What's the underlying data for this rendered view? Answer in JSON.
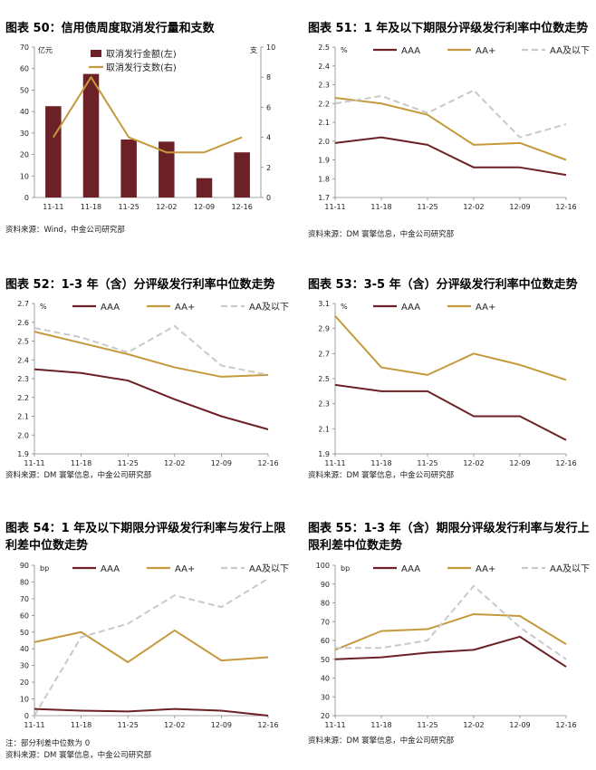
{
  "colors": {
    "aaa": "#6b2125",
    "aa_plus": "#c49a3c",
    "aa_below": "#c9c9c9",
    "bar": "#6b2125"
  },
  "charts": [
    {
      "title": "图表 50：信用债周度取消发行量和支数",
      "source": "资料来源：Wind，中金公司研究部",
      "note": "",
      "chart_data": {
        "type": "bar+line",
        "categories": [
          "11-11",
          "11-18",
          "11-25",
          "12-02",
          "12-09",
          "12-16"
        ],
        "y_unit_left": "亿元",
        "y_unit_right": "支",
        "ylim_left": [
          0,
          70
        ],
        "yticks_left": [
          0,
          10,
          20,
          30,
          40,
          50,
          60,
          70
        ],
        "ylim_right": [
          0,
          10
        ],
        "yticks_right": [
          0,
          2,
          4,
          6,
          8,
          10
        ],
        "legend": [
          "取消发行金额(左)",
          "取消发行支数(右)"
        ],
        "bars": {
          "name": "取消发行金额(左)",
          "values": [
            42.5,
            57.5,
            27,
            26,
            9,
            21
          ]
        },
        "line": {
          "name": "取消发行支数(右)",
          "values": [
            4,
            8,
            4,
            3,
            3,
            4
          ]
        }
      }
    },
    {
      "title": "图表 51：1 年及以下期限分评级发行利率中位数走势",
      "source": "资料来源：DM 寰擎信息，中金公司研究部",
      "note": "",
      "chart_data": {
        "type": "line",
        "categories": [
          "11-11",
          "11-18",
          "11-25",
          "12-02",
          "12-09",
          "12-16"
        ],
        "y_unit": "%",
        "ylim": [
          1.7,
          2.5
        ],
        "yticks": [
          "1.7",
          "1.8",
          "1.9",
          "2.0",
          "2.1",
          "2.2",
          "2.3",
          "2.4",
          "2.5"
        ],
        "series": [
          {
            "name": "AAA",
            "values": [
              1.99,
              2.02,
              1.98,
              1.86,
              1.86,
              1.82
            ]
          },
          {
            "name": "AA+",
            "values": [
              2.23,
              2.2,
              2.14,
              1.98,
              1.99,
              1.9
            ]
          },
          {
            "name": "AA及以下",
            "values": [
              2.2,
              2.24,
              2.15,
              2.27,
              2.02,
              2.09
            ]
          }
        ]
      }
    },
    {
      "title": "图表 52：1-3 年（含）分评级发行利率中位数走势",
      "source": "资料来源：DM 寰擎信息，中金公司研究部",
      "note": "",
      "chart_data": {
        "type": "line",
        "categories": [
          "11-11",
          "11-18",
          "11-25",
          "12-02",
          "12-09",
          "12-16"
        ],
        "y_unit": "%",
        "ylim": [
          1.9,
          2.7
        ],
        "yticks": [
          "1.9",
          "2.0",
          "2.1",
          "2.2",
          "2.3",
          "2.4",
          "2.5",
          "2.6",
          "2.7"
        ],
        "series": [
          {
            "name": "AAA",
            "values": [
              2.35,
              2.33,
              2.29,
              2.19,
              2.1,
              2.03
            ]
          },
          {
            "name": "AA+",
            "values": [
              2.55,
              2.49,
              2.43,
              2.36,
              2.31,
              2.32
            ]
          },
          {
            "name": "AA及以下",
            "values": [
              2.57,
              2.52,
              2.44,
              2.58,
              2.37,
              2.32
            ]
          }
        ]
      }
    },
    {
      "title": "图表 53：3-5 年（含）分评级发行利率中位数走势",
      "source": "资料来源：DM 寰擎信息，中金公司研究部",
      "note": "",
      "chart_data": {
        "type": "line",
        "categories": [
          "11-11",
          "11-18",
          "11-25",
          "12-02",
          "12-09",
          "12-16"
        ],
        "y_unit": "%",
        "ylim": [
          1.9,
          3.1
        ],
        "yticks": [
          "1.9",
          "2.1",
          "2.3",
          "2.5",
          "2.7",
          "2.9",
          "3.1"
        ],
        "series": [
          {
            "name": "AAA",
            "values": [
              2.45,
              2.4,
              2.4,
              2.2,
              2.2,
              2.01
            ]
          },
          {
            "name": "AA+",
            "values": [
              3.0,
              2.59,
              2.53,
              2.7,
              2.61,
              2.49
            ]
          }
        ]
      }
    },
    {
      "title": "图表 54：1 年及以下期限分评级发行利率与发行上限利差中位数走势",
      "source": "资料来源：DM 寰擎信息，中金公司研究部",
      "note": "注：部分利差中位数为 0",
      "chart_data": {
        "type": "line",
        "categories": [
          "11-11",
          "11-18",
          "11-25",
          "12-02",
          "12-09",
          "12-16"
        ],
        "y_unit": "bp",
        "ylim": [
          0,
          90
        ],
        "yticks": [
          "0",
          "10",
          "20",
          "30",
          "40",
          "50",
          "60",
          "70",
          "80",
          "90"
        ],
        "series": [
          {
            "name": "AAA",
            "values": [
              4,
              3,
              2.5,
              4,
              3,
              0
            ]
          },
          {
            "name": "AA+",
            "values": [
              44,
              50,
              32,
              51,
              33,
              35
            ]
          },
          {
            "name": "AA及以下",
            "values": [
              0,
              47,
              55,
              72,
              65,
              82
            ]
          }
        ]
      }
    },
    {
      "title": "图表 55：1-3 年（含）期限分评级发行利率与发行上限利差中位数走势",
      "source": "资料来源：DM 寰擎信息，中金公司研究部",
      "note": "",
      "chart_data": {
        "type": "line",
        "categories": [
          "11-11",
          "11-18",
          "11-25",
          "12-02",
          "12-09",
          "12-16"
        ],
        "y_unit": "bp",
        "ylim": [
          20,
          100
        ],
        "yticks": [
          "20",
          "30",
          "40",
          "50",
          "60",
          "70",
          "80",
          "90",
          "100"
        ],
        "series": [
          {
            "name": "AAA",
            "values": [
              50,
              51,
              53.5,
              55,
              62,
              46
            ]
          },
          {
            "name": "AA+",
            "values": [
              55,
              65,
              66,
              74,
              73,
              58
            ]
          },
          {
            "name": "AA及以下",
            "values": [
              56,
              56,
              60,
              89,
              67,
              50
            ]
          }
        ]
      }
    }
  ]
}
